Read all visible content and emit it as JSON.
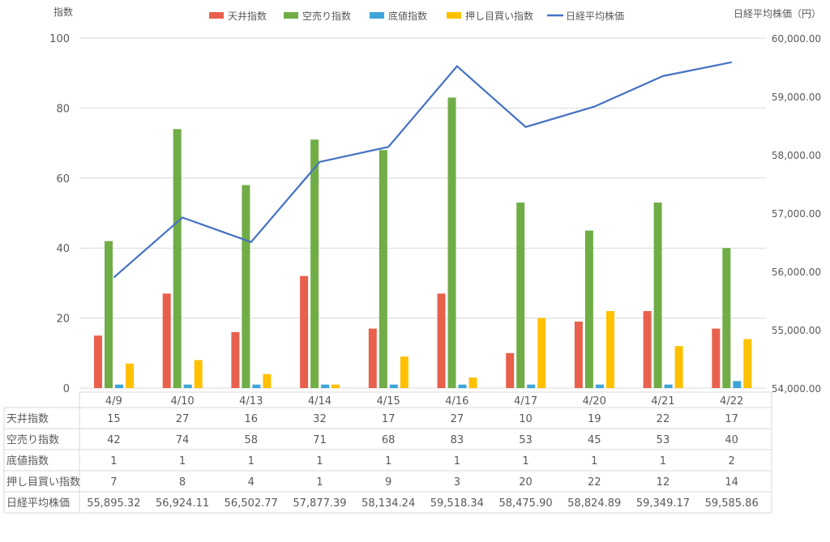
{
  "chart_data": {
    "type": "bar",
    "left_axis_title": "指数",
    "right_axis_title": "日経平均株価（円）",
    "categories": [
      "4/9",
      "4/10",
      "4/13",
      "4/14",
      "4/15",
      "4/16",
      "4/17",
      "4/20",
      "4/21",
      "4/22"
    ],
    "ylim_left": [
      0,
      100
    ],
    "left_ticks": [
      "0",
      "20",
      "40",
      "60",
      "80",
      "100"
    ],
    "ylim_right": [
      54000,
      60000
    ],
    "right_ticks": [
      "54,000.00",
      "55,000.00",
      "56,000.00",
      "57,000.00",
      "58,000.00",
      "59,000.00",
      "60,000.00"
    ],
    "grid": true,
    "legend_position": "top",
    "series": [
      {
        "name": "天井指数",
        "type": "bar",
        "axis": "left",
        "color": "#E8604C",
        "values": [
          15,
          27,
          16,
          32,
          17,
          27,
          10,
          19,
          22,
          17
        ],
        "labels": [
          "15",
          "27",
          "16",
          "32",
          "17",
          "27",
          "10",
          "19",
          "22",
          "17"
        ]
      },
      {
        "name": "空売り指数",
        "type": "bar",
        "axis": "left",
        "color": "#70AD47",
        "values": [
          42,
          74,
          58,
          71,
          68,
          83,
          53,
          45,
          53,
          40
        ],
        "labels": [
          "42",
          "74",
          "58",
          "71",
          "68",
          "83",
          "53",
          "45",
          "53",
          "40"
        ]
      },
      {
        "name": "底値指数",
        "type": "bar",
        "axis": "left",
        "color": "#3EA5D8",
        "values": [
          1,
          1,
          1,
          1,
          1,
          1,
          1,
          1,
          1,
          2
        ],
        "labels": [
          "1",
          "1",
          "1",
          "1",
          "1",
          "1",
          "1",
          "1",
          "1",
          "2"
        ]
      },
      {
        "name": "押し目買い指数",
        "type": "bar",
        "axis": "left",
        "color": "#FFC000",
        "values": [
          7,
          8,
          4,
          1,
          9,
          3,
          20,
          22,
          12,
          14
        ],
        "labels": [
          "7",
          "8",
          "4",
          "1",
          "9",
          "3",
          "20",
          "22",
          "12",
          "14"
        ]
      },
      {
        "name": "日経平均株価",
        "type": "line",
        "axis": "right",
        "color": "#4472C4",
        "values": [
          55895.32,
          56924.11,
          56502.77,
          57877.39,
          58134.24,
          59518.34,
          58475.9,
          58824.89,
          59349.17,
          59585.86
        ],
        "labels": [
          "55,895.32",
          "56,924.11",
          "56,502.77",
          "57,877.39",
          "58,134.24",
          "59,518.34",
          "58,475.90",
          "58,824.89",
          "59,349.17",
          "59,585.86"
        ]
      }
    ]
  }
}
